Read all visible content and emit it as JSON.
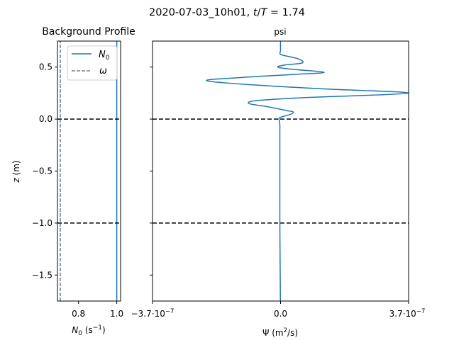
{
  "suptitle": "2020-07-03_10h01, t/T = 1.74",
  "suptitle_parts": {
    "prefix": "2020-07-03_10h01, ",
    "t": "t",
    "slash": "/",
    "T": "T",
    "eq": " = 1.74"
  },
  "chart_data": [
    {
      "type": "line",
      "title": "Background Profile",
      "xlabel": "N0 (s^-1)",
      "xlabel_parts": {
        "N": "N",
        "sub": "0",
        "unit_open": " (s",
        "sup": "−1",
        "unit_close": ")"
      },
      "ylabel": "z (m)",
      "ylabel_parts": {
        "z": "z",
        "unit": " (m)"
      },
      "xlim": [
        0.69,
        1.02
      ],
      "ylim": [
        -1.75,
        0.75
      ],
      "xticks": [
        0.8,
        1.0
      ],
      "xtick_labels": [
        "0.8",
        "1.0"
      ],
      "yticks": [
        0.5,
        0.0,
        -0.5,
        -1.0,
        -1.5
      ],
      "ytick_labels": [
        "0.5",
        "0.0",
        "−0.5",
        "−1.0",
        "−1.5"
      ],
      "grid": false,
      "legend_position": "upper-right",
      "legend": [
        {
          "name": "N0",
          "label_main": "N",
          "label_sub": "0",
          "color": "#1f77b4",
          "style": "solid"
        },
        {
          "name": "ω",
          "label_main": "ω",
          "color": "#708090",
          "style": "dashed"
        }
      ],
      "series": [
        {
          "name": "N0",
          "color": "#1f77b4",
          "style": "solid",
          "x": [
            1.0,
            1.0
          ],
          "y": [
            -1.75,
            0.75
          ]
        },
        {
          "name": "ω",
          "color": "#708090",
          "style": "dashed",
          "x": [
            0.705,
            0.705
          ],
          "y": [
            -1.75,
            0.75
          ]
        }
      ],
      "hlines": [
        {
          "y": 0.0,
          "color": "#000000",
          "style": "dashed"
        },
        {
          "y": -1.0,
          "color": "#000000",
          "style": "dashed"
        }
      ]
    },
    {
      "type": "line",
      "title": "psi",
      "xlabel": "Ψ (m^2/s)",
      "xlabel_parts": {
        "psi": "Ψ (m",
        "sup": "2",
        "rest": "/s)"
      },
      "xlim": [
        -3.7e-07,
        3.7e-07
      ],
      "ylim": [
        -1.75,
        0.75
      ],
      "xtick_labels": [
        {
          "value": -3.7e-07,
          "mant": "−3.7",
          "dot": "·",
          "base": "10",
          "exp": "−7"
        },
        {
          "value": 0.0,
          "plain": "0.0"
        },
        {
          "value": 3.7e-07,
          "mant": "3.7",
          "dot": "·",
          "base": "10",
          "exp": "−7"
        }
      ],
      "yticks": [
        0.5,
        0.0,
        -0.5,
        -1.0,
        -1.5
      ],
      "grid": false,
      "series": [
        {
          "name": "psi",
          "color": "#1f77b4",
          "x": [
            -5e-10,
            -1e-09,
            -2e-09,
            -2e-09,
            -2e-09,
            -2e-09,
            -2e-09,
            -3e-09,
            -4e-09,
            -5e-09,
            -4e-09,
            2e-09,
            1.3e-08,
            3.2e-08,
            3.6e-08,
            2e-08,
            6e-09,
            -3.9e-08,
            -9.2e-08,
            -6.2e-08,
            9.6e-08,
            3.7e-07,
            1.26e-07,
            -8.5e-08,
            -2.14e-07,
            -1.12e-07,
            4.2e-08,
            1.26e-07,
            3e-08,
            -8e-09,
            1.2e-08,
            6.3e-08,
            5e-08,
            2e-09,
            0.0,
            0.0
          ],
          "y": [
            -1.75,
            -1.5,
            -1.0,
            -0.5,
            -0.2,
            -0.1,
            -0.06,
            -0.03,
            -0.01,
            0.0,
            0.01,
            0.02,
            0.03,
            0.05,
            0.07,
            0.08,
            0.09,
            0.12,
            0.15,
            0.18,
            0.21,
            0.25,
            0.29,
            0.33,
            0.37,
            0.4,
            0.43,
            0.45,
            0.48,
            0.5,
            0.52,
            0.54,
            0.58,
            0.62,
            0.66,
            0.75
          ]
        }
      ],
      "hlines": [
        {
          "y": 0.0,
          "color": "#000000",
          "style": "dashed"
        },
        {
          "y": -1.0,
          "color": "#000000",
          "style": "dashed"
        }
      ]
    }
  ]
}
